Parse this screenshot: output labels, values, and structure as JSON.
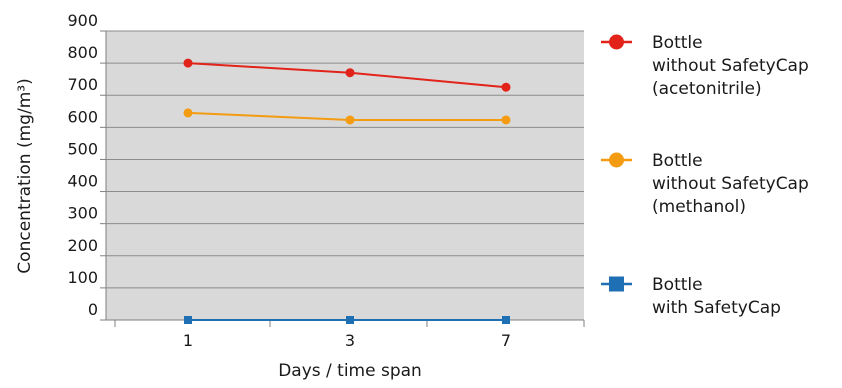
{
  "chart_data": {
    "type": "line",
    "xlabel": "Days / time span",
    "ylabel": "Concentration (mg/m³)",
    "categories": [
      "1",
      "3",
      "7"
    ],
    "ylim": [
      0,
      900
    ],
    "yticks": [
      0,
      100,
      200,
      300,
      400,
      500,
      600,
      700,
      800,
      900
    ],
    "grid": true,
    "legend_position": "right",
    "plot_background": "#d9d9d9",
    "series": [
      {
        "name": "Bottle without SafetyCap (acetonitrile)",
        "legend_lines": [
          "Bottle",
          "without SafetyCap",
          "(acetonitrile)"
        ],
        "values": [
          800,
          770,
          725
        ],
        "color": "#e2231a",
        "marker": "circle"
      },
      {
        "name": "Bottle without SafetyCap (methanol)",
        "legend_lines": [
          "Bottle",
          "without SafetyCap",
          "(methanol)"
        ],
        "values": [
          645,
          623,
          623
        ],
        "color": "#f39c12",
        "marker": "circle"
      },
      {
        "name": "Bottle with SafetyCap",
        "legend_lines": [
          "Bottle",
          "with SafetyCap"
        ],
        "values": [
          0,
          0,
          0
        ],
        "color": "#1f6fb5",
        "marker": "square"
      }
    ]
  }
}
